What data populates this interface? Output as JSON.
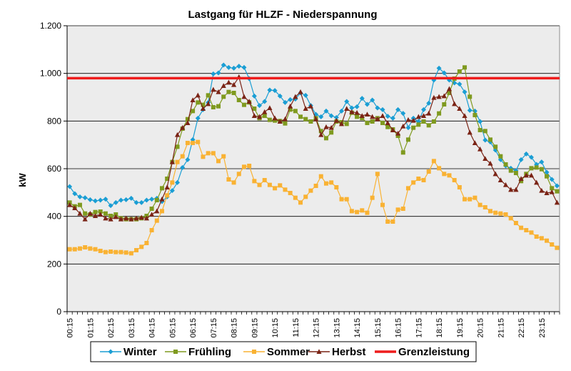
{
  "chart_data": {
    "type": "line",
    "title": "Lastgang für HLZF - Niederspannung",
    "xlabel": "",
    "ylabel": "kW",
    "ylim": [
      0,
      1200
    ],
    "yticks": [
      0,
      200,
      400,
      600,
      800,
      1000,
      1200
    ],
    "ytick_labels": [
      "0",
      "200",
      "400",
      "600",
      "800",
      "1.000",
      "1.200"
    ],
    "grid": true,
    "legend_position": "bottom",
    "x": [
      "00:15",
      "00:30",
      "00:45",
      "01:00",
      "01:15",
      "01:30",
      "01:45",
      "02:00",
      "02:15",
      "02:30",
      "02:45",
      "03:00",
      "03:15",
      "03:30",
      "03:45",
      "04:00",
      "04:15",
      "04:30",
      "04:45",
      "05:00",
      "05:15",
      "05:30",
      "05:45",
      "06:00",
      "06:15",
      "06:30",
      "06:45",
      "07:00",
      "07:15",
      "07:30",
      "07:45",
      "08:00",
      "08:15",
      "08:30",
      "08:45",
      "09:00",
      "09:15",
      "09:30",
      "09:45",
      "10:00",
      "10:15",
      "10:30",
      "10:45",
      "11:00",
      "11:15",
      "11:30",
      "11:45",
      "12:00",
      "12:15",
      "12:30",
      "12:45",
      "13:00",
      "13:15",
      "13:30",
      "13:45",
      "14:00",
      "14:15",
      "14:30",
      "14:45",
      "15:00",
      "15:15",
      "15:30",
      "15:45",
      "16:00",
      "16:15",
      "16:30",
      "16:45",
      "17:00",
      "17:15",
      "17:30",
      "17:45",
      "18:00",
      "18:15",
      "18:30",
      "18:45",
      "19:00",
      "19:15",
      "19:30",
      "19:45",
      "20:00",
      "20:15",
      "20:30",
      "20:45",
      "21:00",
      "21:15",
      "21:30",
      "21:45",
      "22:00",
      "22:15",
      "22:30",
      "22:45",
      "23:00",
      "23:15",
      "23:30",
      "23:45",
      "24:00"
    ],
    "x_tick_labels": [
      "00:15",
      "01:15",
      "02:15",
      "03:15",
      "04:15",
      "05:15",
      "06:15",
      "07:15",
      "08:15",
      "09:15",
      "10:15",
      "11:15",
      "12:15",
      "13:15",
      "14:15",
      "15:15",
      "16:15",
      "17:15",
      "18:15",
      "19:15",
      "20:15",
      "21:15",
      "22:15",
      "23:15"
    ],
    "series": [
      {
        "name": "Winter",
        "color": "#1a9ed4",
        "marker": "diamond",
        "values": [
          525,
          495,
          482,
          478,
          470,
          465,
          468,
          472,
          445,
          458,
          468,
          470,
          476,
          458,
          458,
          468,
          472,
          476,
          462,
          482,
          508,
          542,
          605,
          638,
          722,
          812,
          848,
          878,
          998,
          1002,
          1035,
          1025,
          1022,
          1030,
          1025,
          978,
          905,
          865,
          882,
          930,
          928,
          905,
          878,
          890,
          892,
          918,
          908,
          865,
          828,
          818,
          842,
          822,
          815,
          842,
          882,
          855,
          860,
          895,
          870,
          888,
          855,
          848,
          820,
          812,
          848,
          832,
          772,
          812,
          798,
          848,
          875,
          972,
          1022,
          1002,
          972,
          960,
          955,
          922,
          845,
          842,
          798,
          720,
          712,
          678,
          638,
          612,
          602,
          592,
          638,
          662,
          648,
          618,
          628,
          585,
          555,
          528
        ]
      },
      {
        "name": "Frühling",
        "color": "#7f9a1f",
        "marker": "square",
        "values": [
          458,
          442,
          448,
          412,
          408,
          418,
          420,
          412,
          402,
          408,
          392,
          388,
          388,
          388,
          392,
          402,
          432,
          468,
          518,
          558,
          628,
          692,
          768,
          808,
          842,
          878,
          868,
          908,
          858,
          862,
          902,
          922,
          918,
          888,
          868,
          878,
          852,
          812,
          822,
          805,
          802,
          800,
          790,
          848,
          842,
          818,
          808,
          798,
          812,
          758,
          728,
          752,
          798,
          795,
          788,
          835,
          818,
          812,
          792,
          798,
          812,
          792,
          775,
          765,
          738,
          668,
          722,
          772,
          785,
          798,
          782,
          798,
          832,
          870,
          918,
          978,
          1008,
          1025,
          902,
          825,
          762,
          758,
          722,
          692,
          652,
          618,
          592,
          582,
          548,
          578,
          602,
          605,
          598,
          568,
          518,
          505
        ]
      },
      {
        "name": "Sommer",
        "color": "#f9b233",
        "marker": "square",
        "values": [
          262,
          262,
          265,
          270,
          265,
          262,
          255,
          250,
          252,
          250,
          250,
          248,
          245,
          258,
          272,
          288,
          342,
          382,
          422,
          488,
          542,
          628,
          652,
          708,
          708,
          712,
          650,
          665,
          665,
          632,
          652,
          555,
          542,
          578,
          608,
          612,
          548,
          532,
          552,
          532,
          518,
          530,
          512,
          498,
          478,
          458,
          482,
          508,
          528,
          568,
          538,
          542,
          522,
          472,
          472,
          422,
          418,
          425,
          415,
          478,
          578,
          448,
          378,
          378,
          428,
          432,
          518,
          542,
          558,
          552,
          588,
          632,
          602,
          578,
          572,
          552,
          522,
          472,
          472,
          478,
          448,
          438,
          422,
          415,
          412,
          408,
          392,
          372,
          352,
          342,
          332,
          315,
          308,
          298,
          282,
          268
        ]
      },
      {
        "name": "Herbst",
        "color": "#7a2315",
        "marker": "triangle",
        "values": [
          448,
          435,
          412,
          388,
          412,
          402,
          408,
          392,
          388,
          398,
          388,
          392,
          388,
          392,
          395,
          392,
          408,
          422,
          472,
          522,
          628,
          742,
          772,
          792,
          888,
          908,
          852,
          872,
          932,
          922,
          948,
          962,
          952,
          985,
          902,
          882,
          822,
          818,
          838,
          855,
          812,
          798,
          808,
          862,
          902,
          922,
          852,
          862,
          808,
          742,
          775,
          772,
          802,
          788,
          852,
          838,
          835,
          822,
          828,
          818,
          808,
          822,
          792,
          762,
          748,
          778,
          805,
          802,
          818,
          822,
          832,
          898,
          902,
          905,
          935,
          872,
          852,
          822,
          752,
          708,
          682,
          642,
          622,
          578,
          552,
          532,
          512,
          512,
          558,
          572,
          572,
          542,
          508,
          498,
          502,
          458
        ]
      }
    ],
    "reference": {
      "name": "Grenzleistung",
      "value": 980,
      "color": "#ee1c1c"
    }
  }
}
